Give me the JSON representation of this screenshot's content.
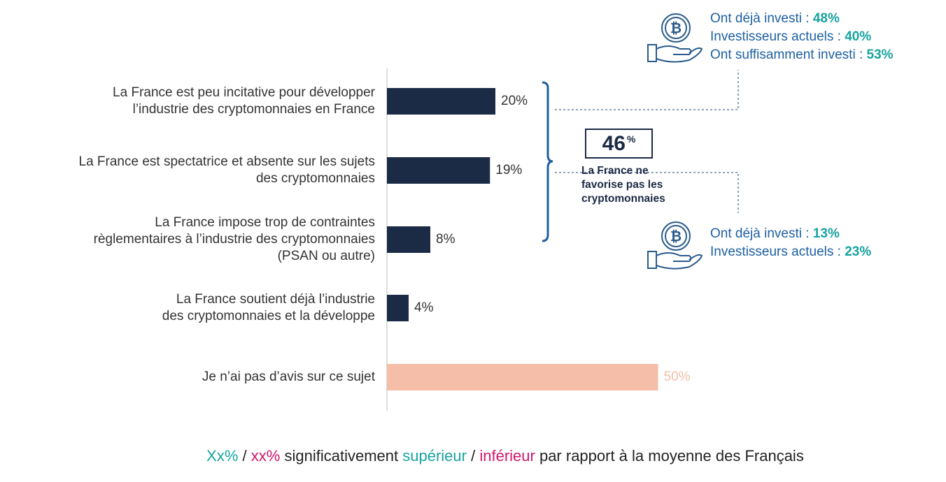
{
  "chart_data": {
    "type": "bar",
    "orientation": "horizontal",
    "categories": [
      "La France est peu incitative pour développer\nl’industrie des cryptomonnaies en France",
      "La France est spectatrice et absente sur les sujets\ndes cryptomonnaies",
      "La France impose trop de contraintes\nrèglementaires à l’industrie des cryptomonnaies\n(PSAN ou autre)",
      "La France soutient déjà l’industrie\ndes cryptomonnaies et la développe",
      "Je n’ai pas d’avis sur ce sujet"
    ],
    "values": [
      20,
      19,
      8,
      4,
      50
    ],
    "value_labels": [
      "20%",
      "19%",
      "8%",
      "4%",
      "50%"
    ],
    "colors": [
      "#1b2a45",
      "#1b2a45",
      "#1b2a45",
      "#1b2a45",
      "#f5bea8"
    ],
    "label_colors": [
      "#333333",
      "#333333",
      "#333333",
      "#333333",
      "#f5bea8"
    ],
    "bracket": {
      "total": "46",
      "unit": "%",
      "label": "La France ne\nfavorise pas les\ncryptomonnaies"
    },
    "callouts": [
      {
        "lines": [
          [
            "Ont déjà investi :",
            "48%"
          ],
          [
            "Investisseurs actuels :",
            "40%"
          ],
          [
            "Ont suffisamment investi :",
            "53%"
          ]
        ]
      },
      {
        "lines": [
          [
            "Ont déjà investi :",
            "13%"
          ],
          [
            "Investisseurs actuels :",
            "23%"
          ]
        ]
      }
    ],
    "legend_note": [
      "Xx%",
      "/",
      "xx%",
      "significativement",
      "supérieur",
      "/",
      "inférieur",
      "par rapport à la moyenne des Français"
    ]
  }
}
